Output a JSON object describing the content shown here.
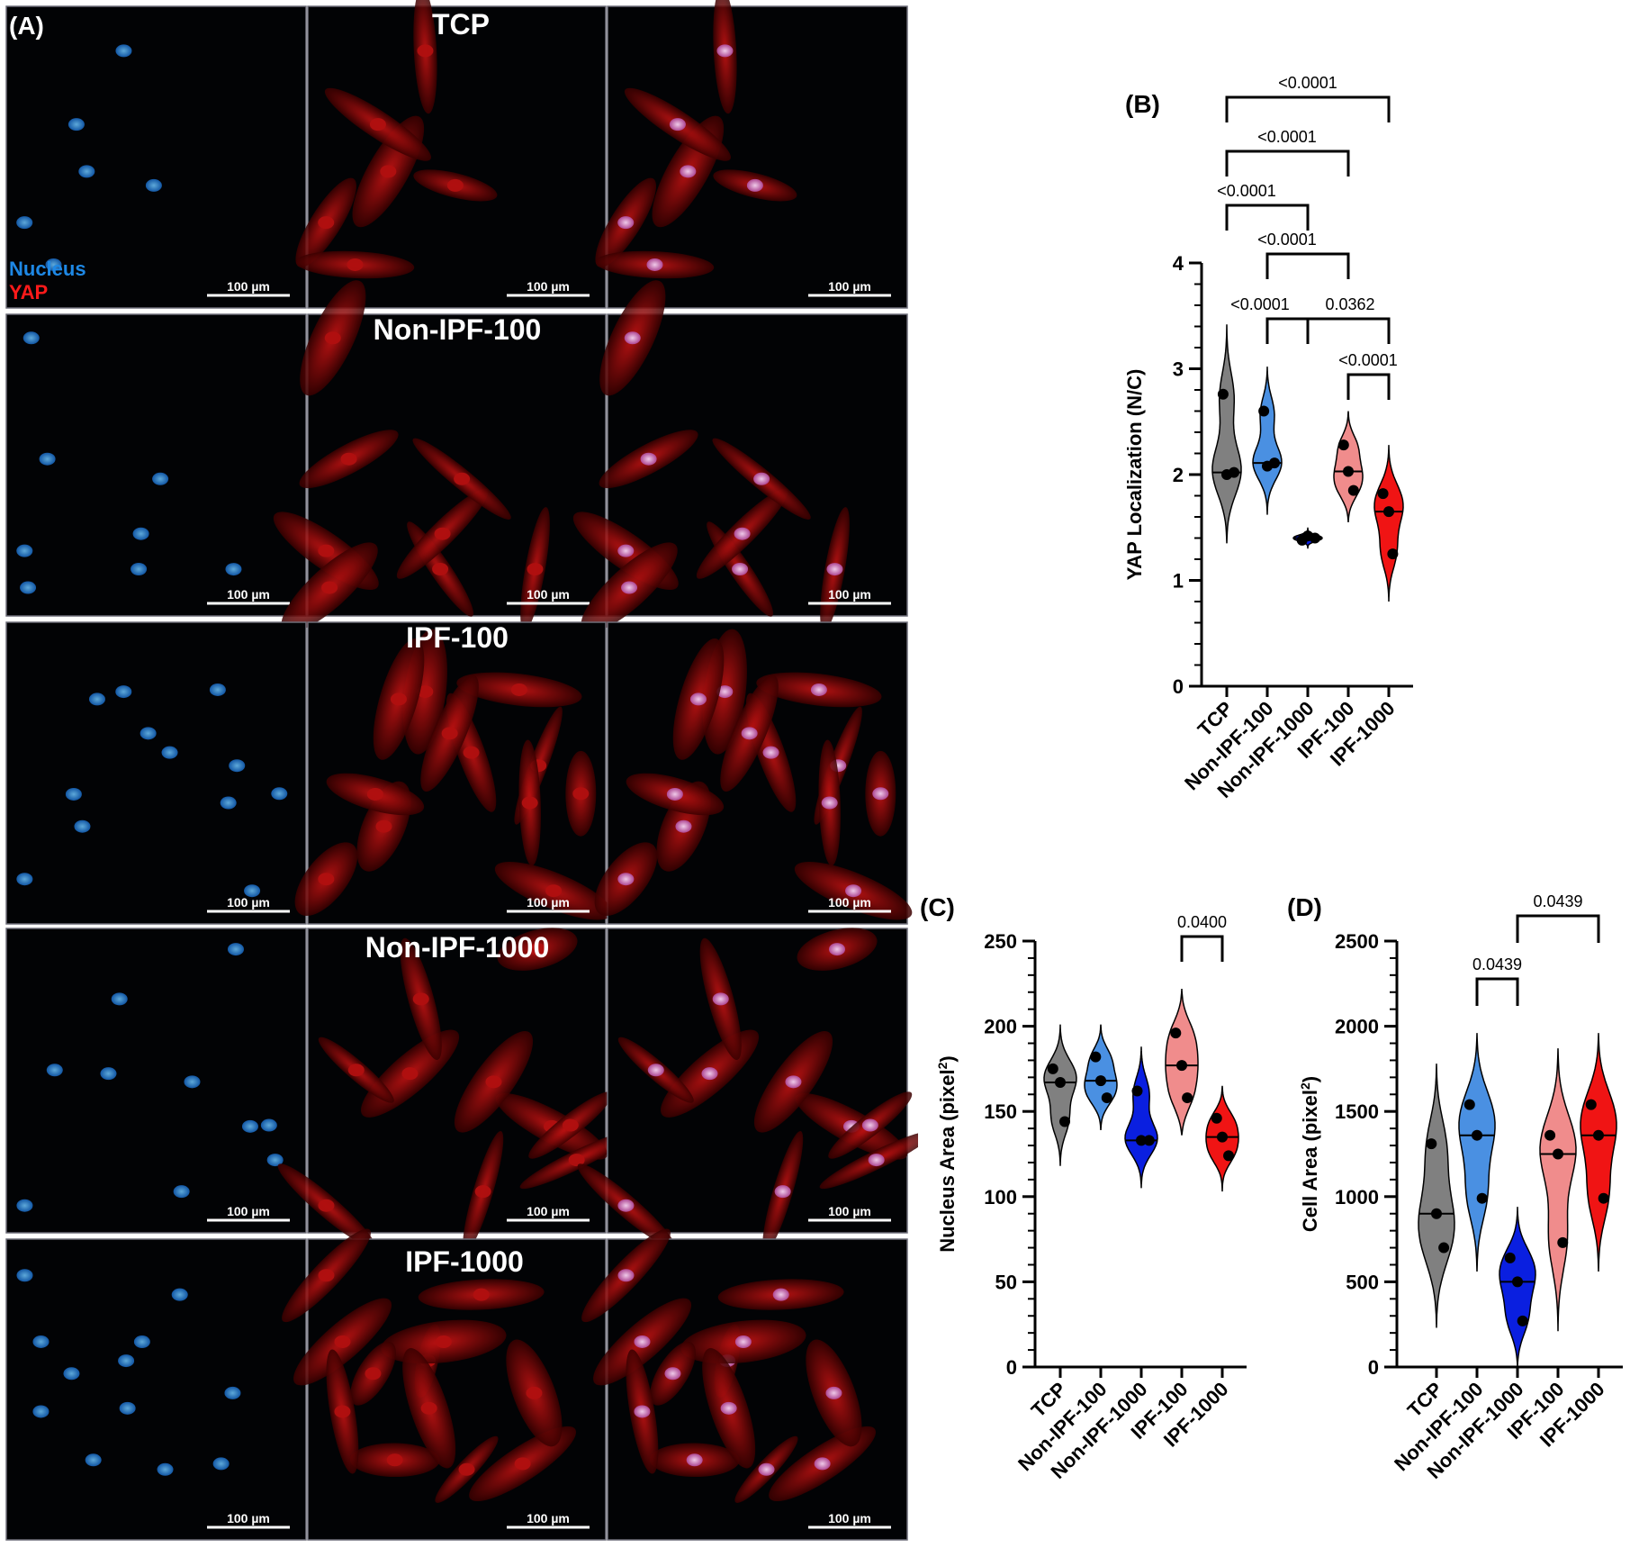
{
  "panelA": {
    "letter": "(A)",
    "legend": {
      "nucleus": "Nucleus",
      "yap": "YAP",
      "nucleus_color": "#1e88e5",
      "yap_color": "#ff1a1a"
    },
    "scalebar": "100 µm",
    "rows": [
      {
        "label": "TCP"
      },
      {
        "label": "Non-IPF-100"
      },
      {
        "label": "IPF-100"
      },
      {
        "label": "Non-IPF-1000"
      },
      {
        "label": "IPF-1000"
      }
    ]
  },
  "colors": {
    "TCP": "#808080",
    "Non-IPF-100": "#4a90e2",
    "Non-IPF-1000": "#0a1fe0",
    "IPF-100": "#f08c8c",
    "IPF-1000": "#f01414"
  },
  "chart_data": [
    {
      "type": "violin",
      "panel": "(B)",
      "ylabel": "YAP Localization (N/C)",
      "categories": [
        "TCP",
        "Non-IPF-100",
        "Non-IPF-1000",
        "IPF-100",
        "IPF-1000"
      ],
      "ylim": [
        0,
        4
      ],
      "yticks": [
        0,
        1,
        2,
        3,
        4
      ],
      "points": [
        [
          2.76,
          2.0,
          2.02
        ],
        [
          2.6,
          2.08,
          2.11
        ],
        [
          1.38,
          1.42,
          1.4
        ],
        [
          2.28,
          2.03,
          1.85
        ],
        [
          1.82,
          1.65,
          1.25
        ]
      ],
      "median": [
        2.02,
        2.11,
        1.4,
        2.03,
        1.65
      ],
      "range": [
        [
          1.35,
          3.42
        ],
        [
          1.62,
          3.02
        ],
        [
          1.3,
          1.5
        ],
        [
          1.55,
          2.6
        ],
        [
          0.8,
          2.28
        ]
      ],
      "comparisons": [
        {
          "a": 0,
          "b": 4,
          "label": "<0.0001"
        },
        {
          "a": 0,
          "b": 3,
          "label": "<0.0001"
        },
        {
          "a": 0,
          "b": 2,
          "label": "<0.0001"
        },
        {
          "a": 1,
          "b": 3,
          "label": "<0.0001"
        },
        {
          "a": 1,
          "b": 2,
          "label": "<0.0001"
        },
        {
          "a": 2,
          "b": 4,
          "label": "0.0362"
        },
        {
          "a": 3,
          "b": 4,
          "label": "<0.0001"
        }
      ]
    },
    {
      "type": "violin",
      "panel": "(C)",
      "ylabel": "Nucleus Area (pixel",
      "ylabel_sup": "2",
      "ylabel_end": ")",
      "categories": [
        "TCP",
        "Non-IPF-100",
        "Non-IPF-1000",
        "IPF-100",
        "IPF-1000"
      ],
      "ylim": [
        0,
        250
      ],
      "yticks": [
        0,
        50,
        100,
        150,
        200,
        250
      ],
      "points": [
        [
          175,
          167,
          144
        ],
        [
          182,
          168,
          158
        ],
        [
          162,
          133,
          133
        ],
        [
          196,
          177,
          158
        ],
        [
          146,
          135,
          124
        ]
      ],
      "median": [
        167,
        168,
        133,
        177,
        135
      ],
      "range": [
        [
          118,
          201
        ],
        [
          139,
          201
        ],
        [
          105,
          188
        ],
        [
          136,
          222
        ],
        [
          103,
          165
        ]
      ],
      "comparisons": [
        {
          "a": 3,
          "b": 4,
          "label": "0.0400"
        }
      ]
    },
    {
      "type": "violin",
      "panel": "(D)",
      "ylabel": "Cell Area (pixel",
      "ylabel_sup": "2",
      "ylabel_end": ")",
      "categories": [
        "TCP",
        "Non-IPF-100",
        "Non-IPF-1000",
        "IPF-100",
        "IPF-1000"
      ],
      "ylim": [
        0,
        2500
      ],
      "yticks": [
        0,
        500,
        1000,
        1500,
        2000,
        2500
      ],
      "points": [
        [
          1310,
          900,
          700
        ],
        [
          1540,
          1360,
          990
        ],
        [
          640,
          500,
          270
        ],
        [
          1360,
          1250,
          730
        ],
        [
          1540,
          1360,
          990
        ]
      ],
      "median": [
        900,
        1360,
        500,
        1250,
        1360
      ],
      "range": [
        [
          230,
          1780
        ],
        [
          560,
          1960
        ],
        [
          0,
          940
        ],
        [
          210,
          1870
        ],
        [
          560,
          1960
        ]
      ],
      "comparisons": [
        {
          "a": 1,
          "b": 2,
          "label": "0.0439"
        },
        {
          "a": 2,
          "b": 4,
          "label": "0.0439"
        }
      ]
    }
  ]
}
